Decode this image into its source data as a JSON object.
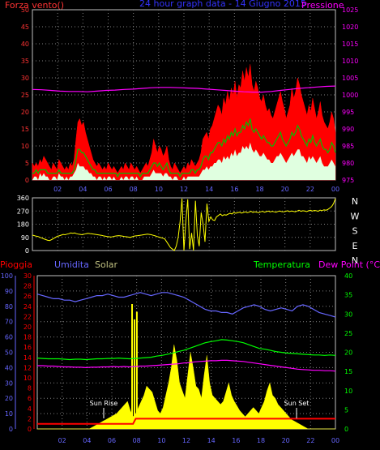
{
  "title": "24 hour graph data - 14 Giugno 2015",
  "header": {
    "wind_label": "Forza vento()",
    "pressure_label": "Pressione"
  },
  "colors": {
    "background": "#000000",
    "wind_gust": "#ff0000",
    "wind_avg": "#00c000",
    "wind_min": "#e0ffe0",
    "pressure": "#ff00ff",
    "direction": "#ffff00",
    "rain": "#ff0000",
    "humidity": "#6666ff",
    "solar": "#ffff00",
    "temperature": "#00ff00",
    "dew_point": "#ff00ff",
    "grid": "#808080",
    "axis_left_top": "#ff3333",
    "axis_right_top": "#ff00ff",
    "axis_humidity": "#6666ff",
    "axis_rain": "#ff0000",
    "axis_temperature": "#00ff00",
    "axis_bottom": "#6666ff",
    "hour_ticks": "#ffff00"
  },
  "chart_data": [
    {
      "type": "area",
      "name": "wind_and_pressure",
      "x_ticks": [
        "02",
        "04",
        "06",
        "08",
        "10",
        "12",
        "14",
        "16",
        "18",
        "20",
        "22",
        "00"
      ],
      "left_axis": {
        "ticks": [
          "0",
          "5",
          "10",
          "15",
          "20",
          "25",
          "30",
          "35",
          "40",
          "45",
          "50"
        ],
        "ylim": [
          0,
          50
        ]
      },
      "right_axis": {
        "ticks": [
          "975",
          "980",
          "985",
          "990",
          "995",
          "1000",
          "1005",
          "1010",
          "1015",
          "1020",
          "1025"
        ],
        "ylim": [
          975,
          1025
        ]
      },
      "gust_samples": [
        5,
        4,
        5,
        4,
        6,
        5,
        7,
        6,
        5,
        4,
        3,
        5,
        4,
        3,
        6,
        5,
        4,
        3,
        4,
        3,
        5,
        4,
        6,
        12,
        17,
        18,
        16,
        17,
        14,
        12,
        10,
        8,
        6,
        5,
        4,
        5,
        4,
        3,
        4,
        3,
        5,
        4,
        3,
        4,
        3,
        2,
        3,
        4,
        3,
        5,
        4,
        3,
        5,
        4,
        3,
        4,
        3,
        2,
        3,
        4,
        5,
        4,
        6,
        8,
        12,
        10,
        8,
        10,
        9,
        7,
        8,
        10,
        6,
        4,
        3,
        5,
        4,
        3,
        2,
        3,
        4,
        3,
        5,
        4,
        6,
        5,
        4,
        5,
        6,
        8,
        12,
        13,
        14,
        12,
        15,
        16,
        18,
        20,
        22,
        21,
        19,
        24,
        22,
        26,
        23,
        27,
        25,
        29,
        24,
        28,
        27,
        32,
        29,
        33,
        30,
        34,
        28,
        26,
        29,
        27,
        24,
        23,
        25,
        22,
        20,
        21,
        19,
        18,
        20,
        22,
        24,
        26,
        23,
        21,
        18,
        20,
        22,
        27,
        24,
        26,
        30,
        28,
        25,
        23,
        21,
        19,
        22,
        20,
        24,
        21,
        18,
        20,
        23,
        19,
        17,
        16,
        15,
        17,
        20,
        18,
        14
      ],
      "avg_samples": [
        2,
        2,
        3,
        2,
        3,
        3,
        3,
        3,
        2,
        2,
        2,
        2,
        2,
        2,
        3,
        2,
        2,
        2,
        2,
        2,
        2,
        2,
        3,
        6,
        9,
        9,
        8,
        8,
        7,
        6,
        5,
        4,
        3,
        3,
        2,
        2,
        2,
        2,
        2,
        2,
        2,
        2,
        2,
        2,
        2,
        1,
        2,
        2,
        2,
        2,
        2,
        2,
        2,
        2,
        2,
        2,
        2,
        1,
        2,
        2,
        2,
        2,
        3,
        4,
        5,
        5,
        4,
        5,
        4,
        3,
        4,
        5,
        3,
        2,
        2,
        2,
        2,
        2,
        1,
        2,
        2,
        2,
        2,
        2,
        3,
        3,
        2,
        3,
        3,
        4,
        6,
        7,
        7,
        6,
        8,
        8,
        9,
        10,
        11,
        11,
        10,
        12,
        11,
        13,
        12,
        14,
        13,
        15,
        13,
        14,
        14,
        16,
        15,
        17,
        16,
        18,
        15,
        14,
        15,
        14,
        13,
        12,
        13,
        12,
        11,
        11,
        10,
        10,
        11,
        12,
        13,
        14,
        12,
        11,
        10,
        11,
        12,
        14,
        13,
        14,
        16,
        15,
        13,
        12,
        11,
        10,
        12,
        11,
        13,
        11,
        10,
        11,
        12,
        10,
        9,
        9,
        8,
        9,
        11,
        10,
        8
      ],
      "min_samples": [
        0,
        1,
        1,
        0,
        2,
        1,
        2,
        1,
        1,
        0,
        0,
        1,
        1,
        0,
        2,
        1,
        1,
        0,
        1,
        0,
        1,
        1,
        2,
        3,
        5,
        4,
        4,
        4,
        3,
        3,
        2,
        2,
        1,
        1,
        0,
        1,
        1,
        0,
        1,
        0,
        1,
        1,
        0,
        1,
        0,
        0,
        0,
        1,
        0,
        1,
        1,
        0,
        1,
        1,
        0,
        1,
        0,
        0,
        0,
        1,
        1,
        1,
        1,
        2,
        3,
        2,
        2,
        2,
        2,
        1,
        2,
        2,
        1,
        1,
        0,
        1,
        1,
        0,
        0,
        0,
        1,
        0,
        1,
        1,
        1,
        1,
        1,
        1,
        1,
        2,
        3,
        3,
        4,
        3,
        4,
        4,
        5,
        5,
        6,
        6,
        5,
        7,
        6,
        7,
        6,
        8,
        7,
        9,
        7,
        8,
        8,
        10,
        9,
        10,
        9,
        11,
        9,
        8,
        9,
        8,
        7,
        7,
        8,
        7,
        6,
        6,
        5,
        5,
        6,
        7,
        7,
        8,
        7,
        6,
        5,
        6,
        7,
        8,
        7,
        8,
        9,
        9,
        7,
        7,
        6,
        5,
        7,
        6,
        7,
        6,
        5,
        6,
        7,
        5,
        4,
        4,
        4,
        5,
        6,
        5,
        4
      ],
      "pressure_samples": [
        1001.6,
        1001.5,
        1001.3,
        1001.1,
        1001.0,
        1001.0,
        1000.9,
        1001.1,
        1001.3,
        1001.4,
        1001.6,
        1001.7,
        1001.9,
        1002.1,
        1002.2,
        1002.2,
        1002.1,
        1002.0,
        1001.9,
        1001.7,
        1001.5,
        1001.3,
        1001.1,
        1000.9,
        1000.8,
        1000.8,
        1001.0,
        1001.3,
        1001.6,
        1001.9,
        1002.1,
        1002.3,
        1002.5,
        1002.6
      ]
    },
    {
      "type": "line",
      "name": "wind_direction",
      "left_axis": {
        "ticks": [
          "0",
          "90",
          "180",
          "270",
          "360"
        ],
        "ylim": [
          0,
          360
        ]
      },
      "right_labels": [
        "N",
        "W",
        "S",
        "E",
        "N"
      ],
      "direction_samples": [
        105,
        102,
        98,
        96,
        90,
        85,
        80,
        75,
        70,
        68,
        75,
        82,
        90,
        98,
        100,
        105,
        110,
        108,
        112,
        115,
        120,
        118,
        120,
        115,
        112,
        110,
        108,
        112,
        115,
        118,
        116,
        114,
        112,
        110,
        108,
        106,
        104,
        100,
        98,
        96,
        94,
        92,
        95,
        98,
        100,
        102,
        100,
        98,
        96,
        94,
        92,
        90,
        94,
        98,
        100,
        102,
        104,
        106,
        108,
        110,
        112,
        110,
        108,
        104,
        100,
        96,
        92,
        88,
        84,
        80,
        60,
        40,
        20,
        10,
        0,
        30,
        90,
        200,
        355,
        0,
        200,
        350,
        10,
        120,
        0,
        340,
        100,
        30,
        260,
        180,
        60,
        320,
        200,
        230,
        210,
        205,
        230,
        240,
        250,
        238,
        245,
        242,
        248,
        255,
        250,
        260,
        255,
        258,
        262,
        256,
        260,
        265,
        258,
        262,
        268,
        260,
        265,
        262,
        258,
        265,
        268,
        262,
        266,
        270,
        264,
        268,
        265,
        262,
        267,
        270,
        266,
        264,
        268,
        272,
        266,
        270,
        268,
        265,
        270,
        275,
        268,
        272,
        270,
        266,
        272,
        275,
        270,
        274,
        272,
        268,
        276,
        272,
        278,
        275,
        280,
        290,
        300,
        320,
        355
      ],
      "x_ticks": [
        "02",
        "04",
        "06",
        "08",
        "10",
        "12",
        "14",
        "16",
        "18",
        "20",
        "22",
        "00"
      ]
    },
    {
      "type": "area",
      "name": "rain_humidity_solar_temperature",
      "legend": [
        "Pioggia",
        "Umidita",
        "Solar",
        "Temperatura",
        "Dew Point (°C)"
      ],
      "annotations": [
        "Sun Rise",
        "Sun Set"
      ],
      "axis_humidity": {
        "ticks": [
          "0",
          "10",
          "20",
          "30",
          "40",
          "50",
          "60",
          "70",
          "80",
          "90",
          "100"
        ],
        "ylim": [
          0,
          100
        ]
      },
      "axis_rain": {
        "ticks": [
          "0",
          "2",
          "4",
          "6",
          "8",
          "10",
          "12",
          "14",
          "16",
          "18",
          "20",
          "22",
          "24",
          "26",
          "28",
          "30"
        ],
        "ylim": [
          0,
          30
        ]
      },
      "axis_temperature": {
        "ticks": [
          "0",
          "5",
          "10",
          "15",
          "20",
          "25",
          "30",
          "35",
          "40"
        ],
        "ylim": [
          0,
          40
        ]
      },
      "x_ticks": [
        "02",
        "04",
        "06",
        "08",
        "10",
        "12",
        "14",
        "16",
        "18",
        "20",
        "22",
        "00"
      ],
      "humidity_samples": [
        88,
        87,
        86,
        85,
        85,
        84,
        84,
        83,
        84,
        85,
        86,
        87,
        87,
        88,
        87,
        86,
        86,
        87,
        88,
        89,
        88,
        87,
        88,
        89,
        89,
        88,
        87,
        86,
        84,
        82,
        80,
        78,
        77,
        77,
        76,
        76,
        75,
        77,
        79,
        80,
        81,
        80,
        78,
        77,
        78,
        79,
        78,
        77,
        80,
        81,
        80,
        78,
        76,
        75,
        74,
        73
      ],
      "solar_samples": [
        0,
        0,
        0,
        0,
        0,
        0,
        0,
        0,
        0,
        0,
        0,
        0,
        0,
        0,
        0,
        0,
        0,
        0,
        0,
        0,
        1,
        2,
        3,
        4,
        5,
        6,
        7,
        8,
        9,
        10,
        12,
        14,
        16,
        18,
        12,
        8,
        10,
        14,
        18,
        22,
        28,
        26,
        24,
        18,
        12,
        10,
        14,
        22,
        30,
        40,
        55,
        45,
        30,
        25,
        20,
        35,
        50,
        40,
        28,
        26,
        20,
        35,
        48,
        30,
        22,
        20,
        18,
        16,
        18,
        24,
        30,
        22,
        18,
        15,
        12,
        10,
        8,
        10,
        12,
        14,
        12,
        10,
        14,
        18,
        25,
        30,
        22,
        20,
        16,
        14,
        12,
        10,
        8,
        6,
        5,
        4,
        3,
        2,
        1,
        0,
        0,
        0,
        0,
        0,
        0,
        0,
        0,
        0,
        0,
        0
      ],
      "solar_peaks": [
        {
          "x": 0.318,
          "v": 1.0
        },
        {
          "x": 0.326,
          "v": 0.9
        },
        {
          "x": 0.334,
          "v": 0.95
        }
      ],
      "temperature_samples": [
        18.5,
        18.4,
        18.3,
        18.3,
        18.3,
        18.2,
        18.1,
        18.2,
        18.2,
        18.1,
        18.2,
        18.3,
        18.3,
        18.4,
        18.4,
        18.5,
        18.4,
        18.3,
        18.4,
        18.5,
        18.6,
        18.7,
        19.0,
        19.2,
        19.5,
        19.8,
        20.2,
        20.5,
        21.0,
        21.5,
        22.0,
        22.5,
        22.8,
        23.0,
        23.3,
        23.2,
        23.0,
        22.8,
        22.5,
        22.0,
        21.5,
        21.0,
        20.8,
        20.5,
        20.2,
        20.0,
        19.8,
        19.7,
        19.6,
        19.5,
        19.4,
        19.3,
        19.3,
        19.2,
        19.3,
        19.2
      ],
      "dewpoint_samples": [
        16.5,
        16.5,
        16.4,
        16.4,
        16.3,
        16.2,
        16.2,
        16.1,
        16.1,
        16.0,
        16.1,
        16.1,
        16.2,
        16.2,
        16.3,
        16.2,
        16.3,
        16.2,
        16.3,
        16.4,
        16.4,
        16.5,
        16.6,
        16.7,
        16.8,
        16.9,
        17.0,
        17.2,
        17.3,
        17.5,
        17.6,
        17.7,
        17.8,
        17.8,
        17.9,
        17.9,
        17.8,
        17.7,
        17.6,
        17.4,
        17.2,
        17.0,
        16.8,
        16.6,
        16.4,
        16.2,
        16.0,
        15.8,
        15.6,
        15.5,
        15.4,
        15.3,
        15.3,
        15.2,
        15.2,
        15.1
      ],
      "rain_samples": [
        1,
        1,
        1,
        1,
        1,
        1,
        1,
        1,
        1,
        1,
        1,
        1,
        1,
        1,
        1,
        1,
        1,
        1,
        1,
        1,
        1,
        1,
        1,
        1,
        1,
        1,
        1,
        1,
        1,
        1,
        1,
        1,
        1,
        1,
        1,
        1,
        2,
        2,
        2,
        2,
        2,
        2,
        2,
        2,
        2,
        2,
        2,
        2,
        2,
        2,
        2,
        2,
        2,
        2,
        2,
        2,
        2,
        2,
        2,
        2,
        2,
        2,
        2,
        2,
        2,
        2,
        2,
        2,
        2,
        2,
        2,
        2,
        2,
        2,
        2,
        2,
        2,
        2,
        2,
        2,
        2,
        2,
        2,
        2,
        2,
        2,
        2,
        2,
        2,
        2,
        2,
        2,
        2,
        2,
        2,
        2,
        2,
        2,
        2,
        2,
        2,
        2,
        2,
        2,
        2,
        2,
        2,
        2,
        2,
        2
      ]
    }
  ]
}
